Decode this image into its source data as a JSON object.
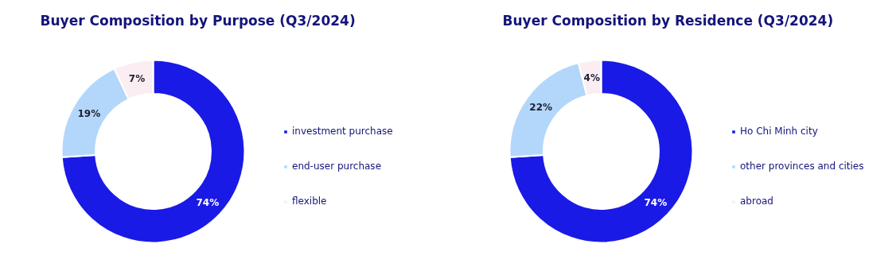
{
  "chart_data": [
    {
      "type": "donut",
      "title": "Buyer Composition by Purpose (Q3/2024)",
      "categories": [
        "investment purchase",
        "end-user purchase",
        "flexible"
      ],
      "values": [
        74,
        19,
        7
      ],
      "colors": [
        "#1a1ae6",
        "#b3d7fb",
        "#fbeef3"
      ],
      "value_labels": [
        "74%",
        "19%",
        "7%"
      ],
      "legend": "right"
    },
    {
      "type": "donut",
      "title": "Buyer Composition by Residence (Q3/2024)",
      "categories": [
        "Ho Chi Minh city",
        "other provinces and cities",
        "abroad"
      ],
      "values": [
        74,
        22,
        4
      ],
      "colors": [
        "#1a1ae6",
        "#b3d7fb",
        "#fbeef3"
      ],
      "value_labels": [
        "74%",
        "22%",
        "4%"
      ],
      "legend": "right"
    }
  ]
}
